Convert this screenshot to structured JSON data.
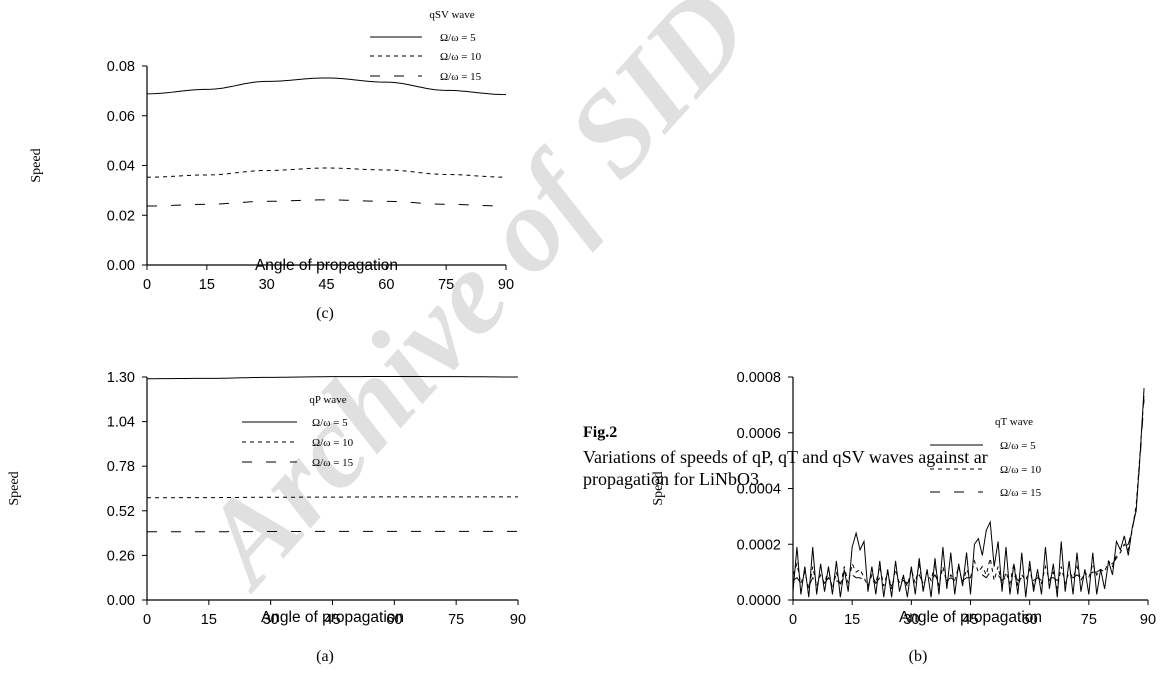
{
  "watermark": "Archive of SID",
  "figure": {
    "label": "Fig.2",
    "caption_line1": "Variations of speeds of qP, qT and qSV waves against ar",
    "caption_line2": "propagation for LiNbO3."
  },
  "chart_data": [
    {
      "id": "c",
      "type": "line",
      "panel_label": "(c)",
      "legend_title": "qSV wave",
      "xlabel": "Angle of propagation",
      "ylabel": "Speed",
      "xlim": [
        0,
        90
      ],
      "ylim": [
        0,
        0.08
      ],
      "xticks": [
        "0",
        "15",
        "30",
        "45",
        "60",
        "75",
        "90"
      ],
      "yticks": [
        "0.00",
        "0.02",
        "0.04",
        "0.06",
        "0.08"
      ],
      "x": [
        0,
        15,
        30,
        45,
        60,
        75,
        90
      ],
      "series": [
        {
          "name": "Ω/ω = 5",
          "values": [
            0.0688,
            0.0706,
            0.0738,
            0.0752,
            0.0735,
            0.0702,
            0.0685
          ]
        },
        {
          "name": "Ω/ω = 10",
          "values": [
            0.0353,
            0.0362,
            0.038,
            0.039,
            0.0382,
            0.0364,
            0.0353
          ]
        },
        {
          "name": "Ω/ω = 15",
          "values": [
            0.0237,
            0.0244,
            0.0256,
            0.0262,
            0.0256,
            0.0244,
            0.0237
          ]
        }
      ]
    },
    {
      "id": "a",
      "type": "line",
      "panel_label": "(a)",
      "legend_title": "qP wave",
      "xlabel": "Angle of propagation",
      "ylabel": "Speed",
      "xlim": [
        0,
        90
      ],
      "ylim": [
        0,
        1.3
      ],
      "xticks": [
        "0",
        "15",
        "30",
        "45",
        "60",
        "75",
        "90"
      ],
      "yticks": [
        "0.00",
        "0.26",
        "0.52",
        "0.78",
        "1.04",
        "1.30"
      ],
      "x": [
        0,
        15,
        30,
        45,
        60,
        75,
        90
      ],
      "series": [
        {
          "name": "Ω/ω = 5",
          "values": [
            1.29,
            1.292,
            1.298,
            1.302,
            1.303,
            1.302,
            1.3
          ]
        },
        {
          "name": "Ω/ω = 10",
          "values": [
            0.596,
            0.597,
            0.599,
            0.6,
            0.601,
            0.601,
            0.601
          ]
        },
        {
          "name": "Ω/ω = 15",
          "values": [
            0.398,
            0.398,
            0.399,
            0.4,
            0.4,
            0.4,
            0.4
          ]
        }
      ]
    },
    {
      "id": "b",
      "type": "line",
      "panel_label": "(b)",
      "legend_title": "qT wave",
      "xlabel": "Angle of propagation",
      "ylabel": "Speed",
      "xlim": [
        0,
        90
      ],
      "ylim": [
        0,
        0.0008
      ],
      "xticks": [
        "0",
        "15",
        "30",
        "45",
        "60",
        "75",
        "90"
      ],
      "yticks": [
        "0.0000",
        "0.0002",
        "0.0004",
        "0.0006",
        "0.0008"
      ],
      "x": [
        0,
        1,
        2,
        3,
        4,
        5,
        6,
        7,
        8,
        9,
        10,
        11,
        12,
        13,
        14,
        15,
        16,
        17,
        18,
        19,
        20,
        21,
        22,
        23,
        24,
        25,
        26,
        27,
        28,
        29,
        30,
        31,
        32,
        33,
        34,
        35,
        36,
        37,
        38,
        39,
        40,
        41,
        42,
        43,
        44,
        45,
        46,
        47,
        48,
        49,
        50,
        51,
        52,
        53,
        54,
        55,
        56,
        57,
        58,
        59,
        60,
        61,
        62,
        63,
        64,
        65,
        66,
        67,
        68,
        69,
        70,
        71,
        72,
        73,
        74,
        75,
        76,
        77,
        78,
        79,
        80,
        81,
        82,
        83,
        84,
        85,
        86,
        87,
        88,
        89
      ],
      "series": [
        {
          "name": "Ω/ω = 5",
          "values": [
            3e-05,
            0.00019,
            2e-05,
            0.00012,
            1e-05,
            0.00019,
            2e-05,
            0.00013,
            3e-05,
            0.00012,
            2e-05,
            0.00014,
            1e-05,
            0.00011,
            3e-05,
            0.00019,
            0.00024,
            0.00018,
            0.00021,
            3e-05,
            0.00012,
            2e-05,
            0.00014,
            1e-05,
            0.00011,
            1e-05,
            0.00014,
            3e-05,
            9e-05,
            1e-05,
            0.00012,
            2e-05,
            0.00015,
            3e-05,
            0.00011,
            1e-05,
            0.00015,
            2e-05,
            0.00019,
            4e-05,
            0.00017,
            2e-05,
            0.00013,
            5e-05,
            0.00017,
            2e-05,
            0.0002,
            0.00022,
            0.00016,
            0.00025,
            0.00028,
            0.00012,
            0.00021,
            3e-05,
            0.00019,
            2e-05,
            0.00013,
            2e-05,
            0.00017,
            1e-05,
            0.00014,
            3e-05,
            0.00011,
            2e-05,
            0.00019,
            4e-05,
            0.00013,
            1e-05,
            0.00021,
            3e-05,
            0.00014,
            2e-05,
            0.00017,
            3e-05,
            0.00011,
            2e-05,
            0.00017,
            2e-05,
            0.00011,
            4e-05,
            0.00014,
            9e-05,
            0.00021,
            0.00018,
            0.00023,
            0.00016,
            0.00026,
            0.00032,
            0.00052,
            0.00076
          ]
        },
        {
          "name": "Ω/ω = 10",
          "values": [
            9e-05,
            0.00013,
            6e-05,
            0.0001,
            4e-05,
            0.00012,
            5e-05,
            9e-05,
            6e-05,
            0.00011,
            4e-05,
            0.0001,
            5e-05,
            0.00012,
            6e-05,
            0.00013,
            0.0001,
            0.00011,
            8e-05,
            5e-05,
            9e-05,
            6e-05,
            0.00012,
            5e-05,
            0.0001,
            4e-05,
            0.00011,
            6e-05,
            8e-05,
            5e-05,
            0.00011,
            6e-05,
            0.00013,
            4e-05,
            0.0001,
            7e-05,
            0.00013,
            5e-05,
            0.00012,
            6e-05,
            9e-05,
            7e-05,
            0.00012,
            6e-05,
            0.00011,
            8e-05,
            0.00014,
            0.0001,
            0.00012,
            9e-05,
            0.00015,
            7e-05,
            0.00012,
            5e-05,
            0.0001,
            6e-05,
            0.00013,
            5e-05,
            9e-05,
            7e-05,
            0.00011,
            5e-05,
            9e-05,
            6e-05,
            0.00012,
            7e-05,
            0.0001,
            4e-05,
            0.00012,
            6e-05,
            0.0001,
            8e-05,
            0.00012,
            7e-05,
            0.0001,
            8e-05,
            0.00013,
            9e-05,
            0.00011,
            0.0001,
            0.00014,
            0.00012,
            0.00016,
            0.00017,
            0.0002,
            0.00018,
            0.00025,
            0.00034,
            0.00053,
            0.00074
          ]
        },
        {
          "name": "Ω/ω = 15",
          "values": [
            7e-05,
            8e-05,
            6e-05,
            7e-05,
            5e-05,
            8e-05,
            6e-05,
            7e-05,
            6e-05,
            8e-05,
            5e-05,
            7e-05,
            6e-05,
            8e-05,
            7e-05,
            9e-05,
            8e-05,
            8e-05,
            7e-05,
            6e-05,
            7e-05,
            6e-05,
            8e-05,
            6e-05,
            7e-05,
            5e-05,
            8e-05,
            6e-05,
            7e-05,
            6e-05,
            8e-05,
            7e-05,
            9e-05,
            6e-05,
            8e-05,
            7e-05,
            9e-05,
            6e-05,
            8e-05,
            7e-05,
            8e-05,
            7e-05,
            9e-05,
            7e-05,
            8e-05,
            8e-05,
            9e-05,
            8e-05,
            9e-05,
            8e-05,
            0.0001,
            8e-05,
            9e-05,
            7e-05,
            8e-05,
            7e-05,
            9e-05,
            7e-05,
            8e-05,
            7e-05,
            8e-05,
            7e-05,
            8e-05,
            7e-05,
            9e-05,
            8e-05,
            8e-05,
            7e-05,
            9e-05,
            8e-05,
            8e-05,
            8e-05,
            9e-05,
            8e-05,
            9e-05,
            9e-05,
            0.0001,
            0.0001,
            0.00011,
            0.00011,
            0.00013,
            0.00013,
            0.00015,
            0.00017,
            0.00019,
            0.0002,
            0.00025,
            0.00033,
            0.00051,
            0.00072
          ]
        }
      ]
    }
  ]
}
